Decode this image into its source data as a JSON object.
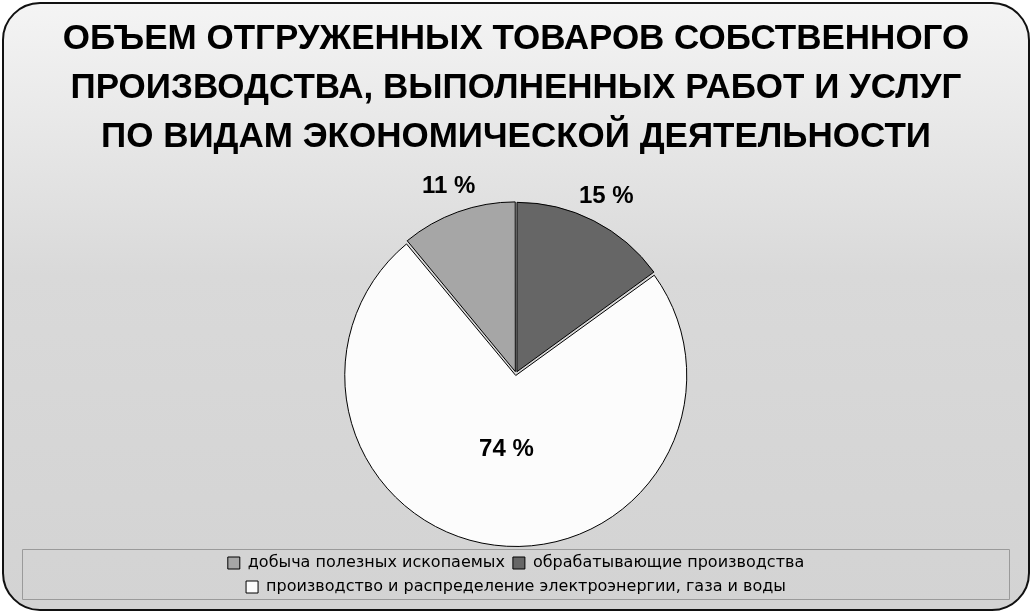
{
  "chart_data": {
    "type": "pie",
    "title": "ОБЪЕМ ОТГРУЖЕННЫХ ТОВАРОВ СОБСТВЕННОГО ПРОИЗВОДСТВА, ВЫПОЛНЕННЫХ РАБОТ И УСЛУГ ПО ВИДАМ ЭКОНОМИЧЕСКОЙ ДЕЯТЕЛЬНОСТИ",
    "categories": [
      "добыча полезных ископаемых",
      "обрабатывающие производства",
      "производство и распределение электроэнергии, газа и воды"
    ],
    "values": [
      11,
      15,
      74
    ],
    "colors": [
      "#a6a6a6",
      "#666666",
      "#fcfcfc"
    ],
    "value_labels": [
      "11 %",
      "15 %",
      "74 %"
    ],
    "legend": "bottom"
  }
}
